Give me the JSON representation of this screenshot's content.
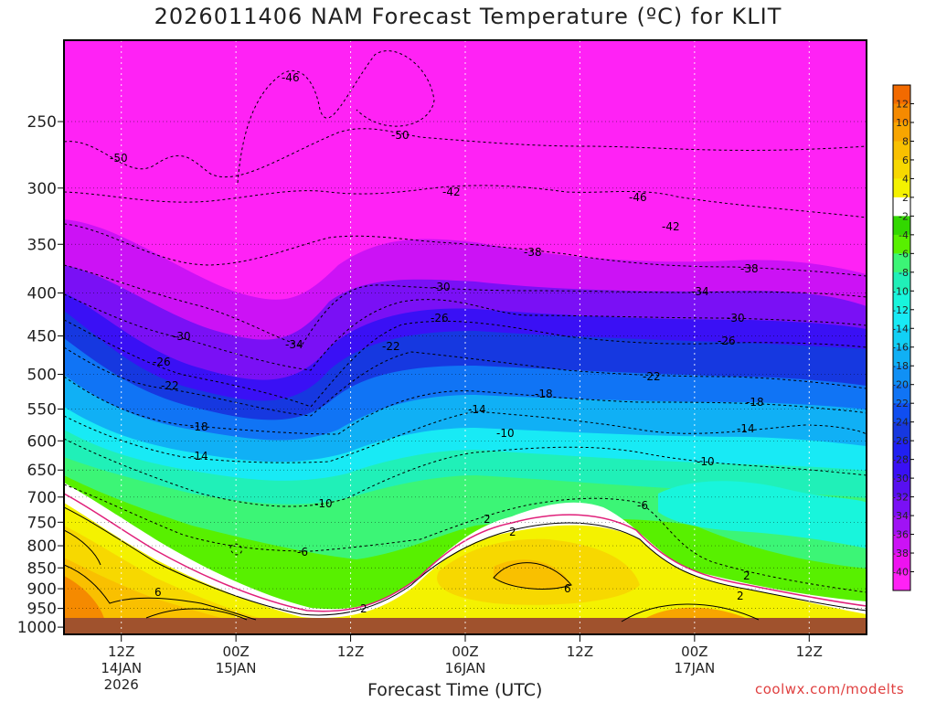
{
  "header": {
    "title": "2026011406 NAM Forecast Temperature (ºC) for KLIT"
  },
  "footer": {
    "xlabel": "Forecast Time (UTC)",
    "credit": "coolwx.com/modelts"
  },
  "chart_data": {
    "type": "contour",
    "title": "2026011406 NAM Forecast Temperature (ºC) for KLIT",
    "xlabel": "Forecast Time (UTC)",
    "ylabel": "",
    "x_ticks": [
      {
        "hour": 6,
        "label": [
          "12Z",
          "14JAN",
          "2026"
        ]
      },
      {
        "hour": 18,
        "label": [
          "00Z",
          "15JAN"
        ]
      },
      {
        "hour": 30,
        "label": [
          "12Z"
        ]
      },
      {
        "hour": 42,
        "label": [
          "00Z",
          "16JAN"
        ]
      },
      {
        "hour": 54,
        "label": [
          "12Z"
        ]
      },
      {
        "hour": 66,
        "label": [
          "00Z",
          "17JAN"
        ]
      },
      {
        "hour": 78,
        "label": [
          "12Z"
        ]
      }
    ],
    "x_range_hours": [
      0,
      84
    ],
    "y_axis": {
      "type": "log-pressure",
      "units": "hPa",
      "ticks": [
        250,
        300,
        350,
        400,
        450,
        500,
        550,
        600,
        650,
        700,
        750,
        800,
        850,
        900,
        950,
        1000
      ],
      "range": [
        200,
        1020
      ],
      "inverted": true
    },
    "colorbar": {
      "labels": [
        "12",
        "10",
        "8",
        "6",
        "4",
        "2",
        "-2",
        "-4",
        "-6",
        "-8",
        "-10",
        "-12",
        "-14",
        "-16",
        "-18",
        "-20",
        "-22",
        "-24",
        "-26",
        "-28",
        "-30",
        "-32",
        "-34",
        "-36",
        "-38",
        "-40"
      ],
      "colors": [
        "#f26a00",
        "#f58a00",
        "#f8a500",
        "#f9c000",
        "#f7d800",
        "#f4f200",
        "#ffffff",
        "#32d800",
        "#58f000",
        "#3cf576",
        "#20f0b8",
        "#18f5dc",
        "#18eaf5",
        "#12d0f5",
        "#10b0f5",
        "#1090f5",
        "#1074f5",
        "#0f4ef0",
        "#1638e0",
        "#2020f2",
        "#3a10f5",
        "#5810f0",
        "#7a10f5",
        "#a012f5",
        "#cc12f5",
        "#ee12f0",
        "#ff22f5"
      ]
    },
    "contours": [
      {
        "value": -46,
        "style": "dashed"
      },
      {
        "value": -50,
        "style": "dashed"
      },
      {
        "value": -42,
        "style": "dashed"
      },
      {
        "value": -38,
        "style": "dashed"
      },
      {
        "value": -34,
        "style": "dashed"
      },
      {
        "value": -30,
        "style": "dashed"
      },
      {
        "value": -26,
        "style": "dashed"
      },
      {
        "value": -22,
        "style": "dashed"
      },
      {
        "value": -18,
        "style": "dashed"
      },
      {
        "value": -14,
        "style": "dashed"
      },
      {
        "value": -10,
        "style": "dashed"
      },
      {
        "value": -6,
        "style": "dashed"
      },
      {
        "value": 2,
        "style": "solid"
      },
      {
        "value": 6,
        "style": "solid"
      },
      {
        "value": 0,
        "style": "freezing-line",
        "color": "#e0207a"
      }
    ],
    "grid": true,
    "ground_color": "#a0522d"
  }
}
